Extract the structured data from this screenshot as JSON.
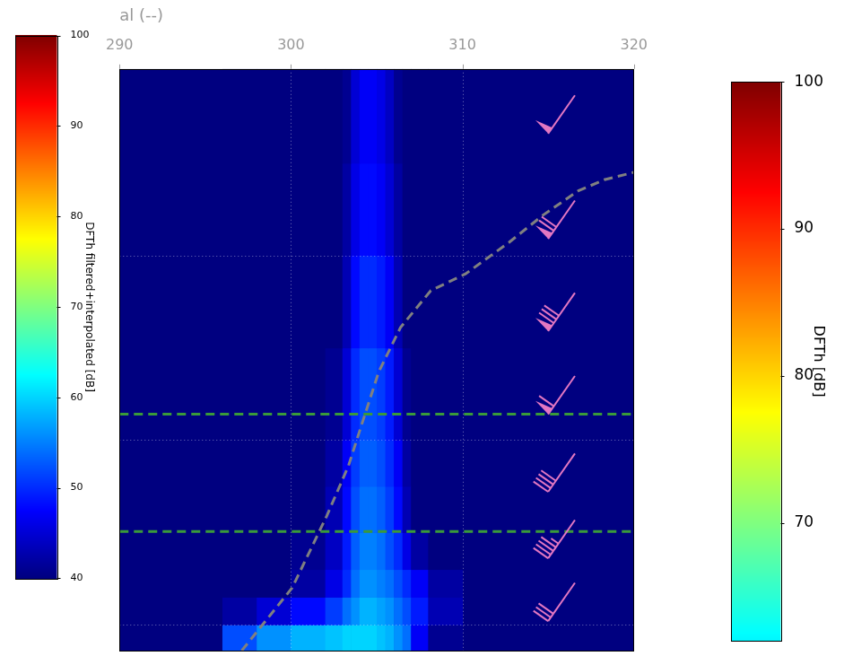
{
  "chart_data": {
    "type": "heatmap",
    "xlabel": "al (--)",
    "xlim": [
      290,
      320
    ],
    "xticks": [
      290,
      300,
      310,
      320
    ],
    "ylim": [
      -0.14,
      3.01
    ],
    "yticks": [
      0,
      1,
      2
    ],
    "grid": true,
    "tick_labels": "x",
    "heatmap": {
      "x_edges": [
        296,
        298,
        300,
        302,
        303,
        303.5,
        304,
        304.5,
        305,
        305.5,
        306,
        306.5,
        307,
        308,
        310
      ],
      "y_edges": [
        -0.14,
        0,
        0.15,
        0.3,
        0.5,
        0.75,
        1,
        1.5,
        2,
        2.5,
        3.01
      ],
      "cells": [
        [
          52,
          56,
          58,
          59,
          60,
          60,
          60,
          60,
          59,
          58,
          56,
          54,
          47,
          41
        ],
        [
          42,
          45,
          48,
          51,
          54,
          56,
          58,
          58,
          57,
          56,
          54,
          52,
          49,
          43
        ],
        [
          40,
          40,
          42,
          46,
          50,
          54,
          56,
          56,
          55,
          54,
          52,
          50,
          47,
          42
        ],
        [
          40,
          40,
          41,
          44,
          49,
          53,
          55,
          55,
          54,
          52,
          50,
          46,
          42,
          40
        ],
        [
          40,
          40,
          40,
          43,
          48,
          52,
          54,
          54,
          53,
          51,
          48,
          43,
          40,
          40
        ],
        [
          40,
          40,
          40,
          42,
          47,
          51,
          53,
          53,
          52,
          50,
          47,
          42,
          40,
          40
        ],
        [
          40,
          40,
          40,
          41,
          45,
          50,
          52,
          52,
          51,
          49,
          45,
          41,
          40,
          40
        ],
        [
          40,
          40,
          40,
          40,
          43,
          48,
          50,
          50,
          49,
          47,
          43,
          40,
          40,
          40
        ],
        [
          40,
          40,
          40,
          40,
          42,
          46,
          48,
          48,
          47,
          45,
          42,
          40,
          40,
          40
        ],
        [
          40,
          40,
          40,
          40,
          41,
          45,
          47,
          47,
          46,
          44,
          41,
          40,
          40,
          40
        ]
      ]
    },
    "colorbars": [
      {
        "label": "DFTh filtered+interpolated [dB]",
        "range": [
          40,
          100
        ],
        "ticks": [
          40,
          50,
          60,
          70,
          80,
          90,
          100
        ]
      },
      {
        "label": "DFTh [dB]",
        "range": [
          62,
          100
        ],
        "ticks": [
          70,
          80,
          90,
          100
        ]
      }
    ],
    "series": [
      {
        "type": "line",
        "color": "#808080",
        "line_style": "dashed",
        "x": [
          297.13,
          300.07,
          302.09,
          303.35,
          304.11,
          305.12,
          306.39,
          308.16,
          310.18,
          312.71,
          314.73,
          316.76,
          318.28,
          320
        ],
        "values": [
          -0.14,
          0.2,
          0.59,
          0.86,
          1.08,
          1.37,
          1.61,
          1.81,
          1.9,
          2.07,
          2.22,
          2.35,
          2.41,
          2.45
        ]
      }
    ],
    "hlines": {
      "color": "#3a9a3a",
      "line_style": "dashed",
      "values": [
        0.505,
        1.14
      ]
    },
    "wind_barbs": {
      "color": "#e377c2",
      "x": [
        315,
        315,
        315,
        315,
        315,
        315,
        315
      ],
      "y": [
        2.66,
        2.09,
        1.59,
        1.14,
        0.72,
        0.36,
        0.02
      ],
      "speed": [
        50,
        70,
        80,
        60,
        40,
        45,
        30
      ],
      "direction": [
        215,
        215,
        215,
        215,
        215,
        215,
        215
      ]
    }
  }
}
